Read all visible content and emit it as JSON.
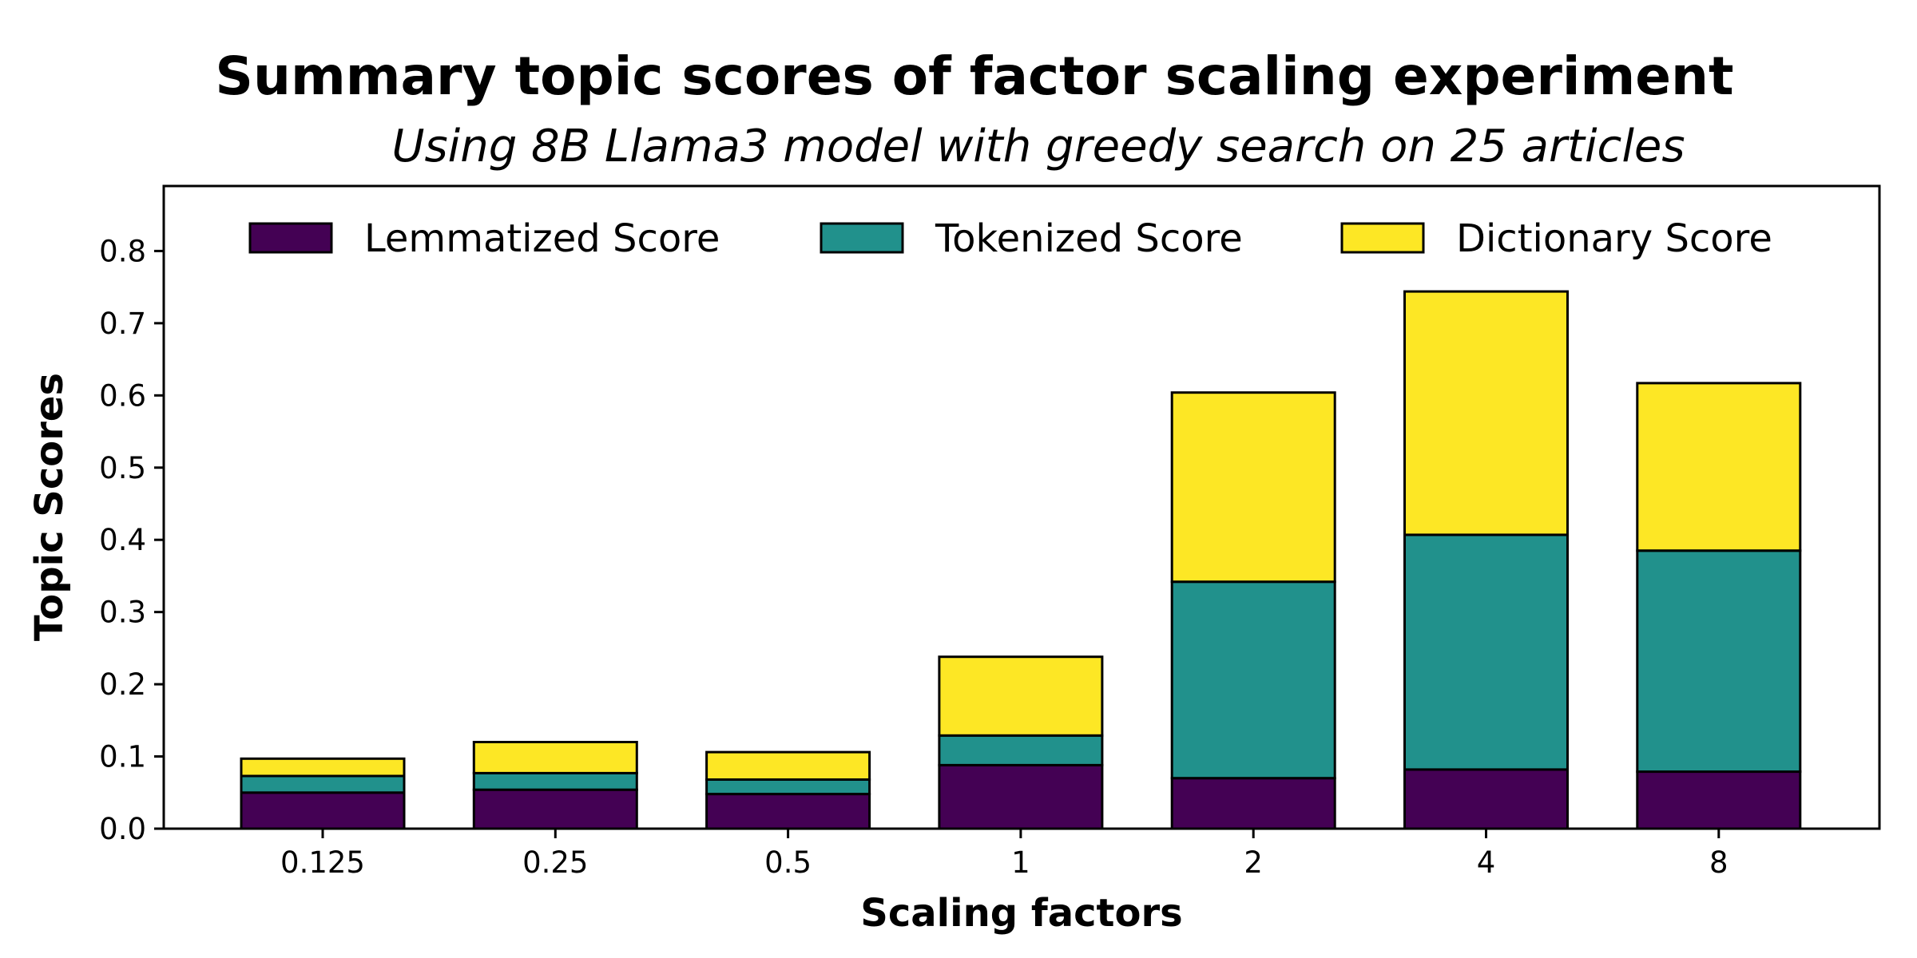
{
  "chart_data": {
    "type": "bar",
    "stacked": true,
    "title": "Summary topic scores of factor scaling experiment",
    "subtitle": "Using 8B Llama3 model with greedy search on 25 articles",
    "xlabel": "Scaling factors",
    "ylabel": "Topic Scores",
    "categories": [
      "0.125",
      "0.25",
      "0.5",
      "1",
      "2",
      "4",
      "8"
    ],
    "yticks": [
      "0.0",
      "0.1",
      "0.2",
      "0.3",
      "0.4",
      "0.5",
      "0.6",
      "0.7",
      "0.8"
    ],
    "ylim": [
      0,
      0.89
    ],
    "grid": false,
    "legend_position": "top",
    "series": [
      {
        "name": "Lemmatized Score",
        "color": "#440154",
        "values": [
          0.05,
          0.054,
          0.048,
          0.088,
          0.07,
          0.082,
          0.079
        ]
      },
      {
        "name": "Tokenized Score",
        "color": "#21918c",
        "values": [
          0.023,
          0.023,
          0.02,
          0.041,
          0.272,
          0.325,
          0.306
        ]
      },
      {
        "name": "Dictionary Score",
        "color": "#fde725",
        "values": [
          0.024,
          0.043,
          0.038,
          0.109,
          0.262,
          0.337,
          0.232
        ]
      }
    ]
  }
}
